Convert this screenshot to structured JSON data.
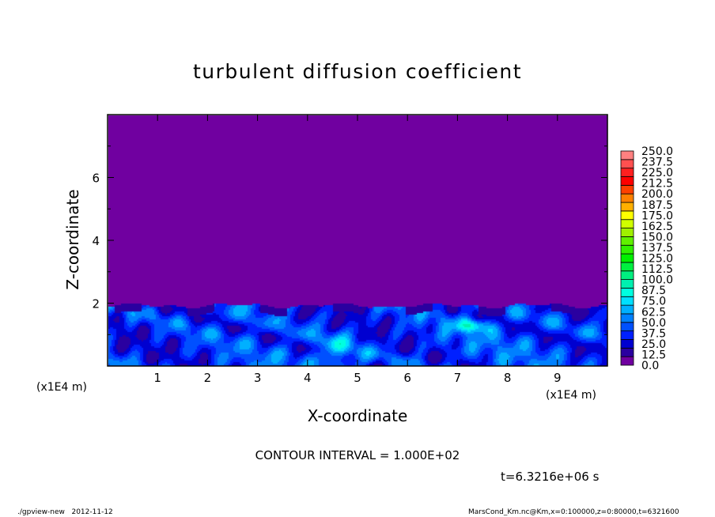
{
  "chart_data": {
    "type": "heatmap",
    "title": "turbulent diffusion coefficient",
    "xlabel": "X-coordinate",
    "ylabel": "Z-coordinate",
    "x_unit_label": "(x1E4 m)",
    "xlim": [
      0,
      10
    ],
    "ylim": [
      0,
      8
    ],
    "x_ticks": [
      1,
      2,
      3,
      4,
      5,
      6,
      7,
      8,
      9
    ],
    "y_ticks": [
      2,
      4,
      6
    ],
    "turbulent_layer_top_z": 1.95,
    "colorbar": {
      "labels": [
        "0.0",
        "12.5",
        "25.0",
        "37.5",
        "50.0",
        "62.5",
        "75.0",
        "87.5",
        "100.0",
        "112.5",
        "125.0",
        "137.5",
        "150.0",
        "162.5",
        "175.0",
        "187.5",
        "200.0",
        "212.5",
        "225.0",
        "237.5",
        "250.0"
      ],
      "min": 0,
      "max": 250,
      "step": 10,
      "colors": [
        "#7000a0",
        "#2a00a0",
        "#0000d0",
        "#0020ff",
        "#0050ff",
        "#0080ff",
        "#00b0ff",
        "#00e0ff",
        "#00ffe0",
        "#00f0b0",
        "#00f080",
        "#00f040",
        "#00f000",
        "#30f000",
        "#60f000",
        "#a0f000",
        "#d0ff00",
        "#ffff00",
        "#ffb000",
        "#ff8000",
        "#ff4000",
        "#ff0000",
        "#ff2020",
        "#ff5050",
        "#ff8080"
      ]
    }
  },
  "annotations": {
    "contour_interval": "CONTOUR INTERVAL = 1.000E+02",
    "time": "t=6.3216e+06 s",
    "footer_left": "./gpview-new   2012-11-12",
    "footer_right": "MarsCond_Km.nc@Km,x=0:100000,z=0:80000,t=6321600"
  }
}
